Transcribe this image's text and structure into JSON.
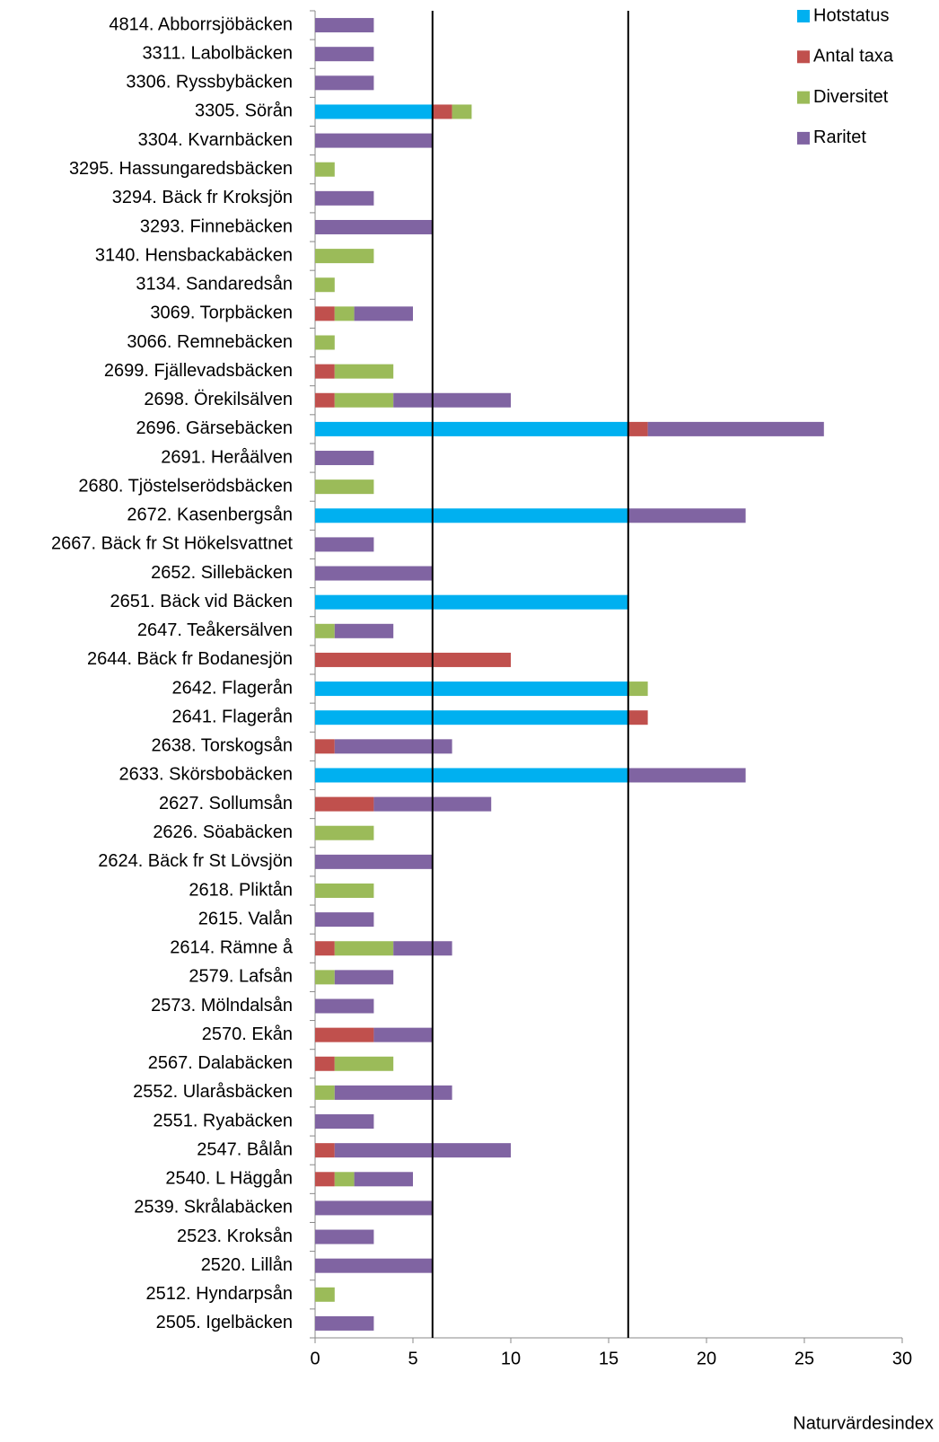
{
  "chart_data": {
    "type": "stacked_barh",
    "x_label": "Naturvärdesindex",
    "categories": [
      "4814. Abborrsjöbäcken",
      "3311. Labolbäcken",
      "3306. Ryssbybäcken",
      "3305. Sörån",
      "3304. Kvarnbäcken",
      "3295. Hassungaredsbäcken",
      "3294. Bäck fr Kroksjön",
      "3293. Finnebäcken",
      "3140. Hensbackabäcken",
      "3134. Sandaredsån",
      "3069. Torpbäcken",
      "3066. Remnebäcken",
      "2699. Fjällevadsbäcken",
      "2698. Örekilsälven",
      "2696. Gärsebäcken",
      "2691. Heråälven",
      "2680. Tjöstelserödsbäcken",
      "2672. Kasenbergsån",
      "2667. Bäck fr St Hökelsvattnet",
      "2652. Sillebäcken",
      "2651. Bäck vid Bäcken",
      "2647. Teåkersälven",
      "2644. Bäck fr Bodanesjön",
      "2642. Flagerån",
      "2641. Flagerån",
      "2638. Torskogsån",
      "2633. Skörsbobäcken",
      "2627. Sollumsån",
      "2626. Söabäcken",
      "2624. Bäck fr St Lövsjön",
      "2618. Pliktån",
      "2615. Valån",
      "2614. Rämne å",
      "2579. Lafsån",
      "2573. Mölndalsån",
      "2570. Ekån",
      "2567. Dalabäcken",
      "2552. Ularåsbäcken",
      "2551. Ryabäcken",
      "2547. Bålån",
      "2540. L Häggån",
      "2539. Skrålabäcken",
      "2523. Kroksån",
      "2520. Lillån",
      "2512. Hyndarpsån",
      "2505. Igelbäcken"
    ],
    "series": [
      {
        "name": "Hotstatus",
        "color": "#00b0f0",
        "values": [
          0,
          0,
          0,
          6,
          0,
          0,
          0,
          0,
          0,
          0,
          0,
          0,
          0,
          0,
          16,
          0,
          0,
          16,
          0,
          0,
          16,
          0,
          0,
          16,
          16,
          0,
          16,
          0,
          0,
          0,
          0,
          0,
          0,
          0,
          0,
          0,
          0,
          0,
          0,
          0,
          0,
          0,
          0,
          0,
          0,
          0
        ]
      },
      {
        "name": "Antal taxa",
        "color": "#c0504d",
        "values": [
          0,
          0,
          0,
          1,
          0,
          0,
          0,
          0,
          0,
          0,
          1,
          0,
          1,
          1,
          1,
          0,
          0,
          0,
          0,
          0,
          0,
          0,
          10,
          0,
          1,
          1,
          0,
          3,
          0,
          0,
          0,
          0,
          1,
          0,
          0,
          3,
          1,
          0,
          0,
          1,
          1,
          0,
          0,
          0,
          0,
          0
        ]
      },
      {
        "name": "Diversitet",
        "color": "#9bbb59",
        "values": [
          0,
          0,
          0,
          1,
          0,
          1,
          0,
          0,
          3,
          1,
          1,
          1,
          3,
          3,
          0,
          0,
          3,
          0,
          0,
          0,
          0,
          1,
          0,
          1,
          0,
          0,
          0,
          0,
          3,
          0,
          3,
          0,
          3,
          1,
          0,
          0,
          3,
          1,
          0,
          0,
          1,
          0,
          0,
          0,
          1,
          0
        ]
      },
      {
        "name": "Raritet",
        "color": "#8064a2",
        "values": [
          3,
          3,
          3,
          0,
          6,
          0,
          3,
          6,
          0,
          0,
          3,
          0,
          0,
          6,
          9,
          3,
          0,
          6,
          3,
          6,
          0,
          3,
          0,
          0,
          0,
          6,
          6,
          6,
          0,
          6,
          0,
          3,
          3,
          3,
          3,
          3,
          0,
          6,
          3,
          9,
          3,
          6,
          3,
          6,
          0,
          3
        ]
      }
    ],
    "xlim": [
      0,
      30
    ],
    "xticks": [
      0,
      5,
      10,
      15,
      20,
      25,
      30
    ],
    "reference_lines": [
      6,
      16
    ],
    "legend": "top-right"
  }
}
